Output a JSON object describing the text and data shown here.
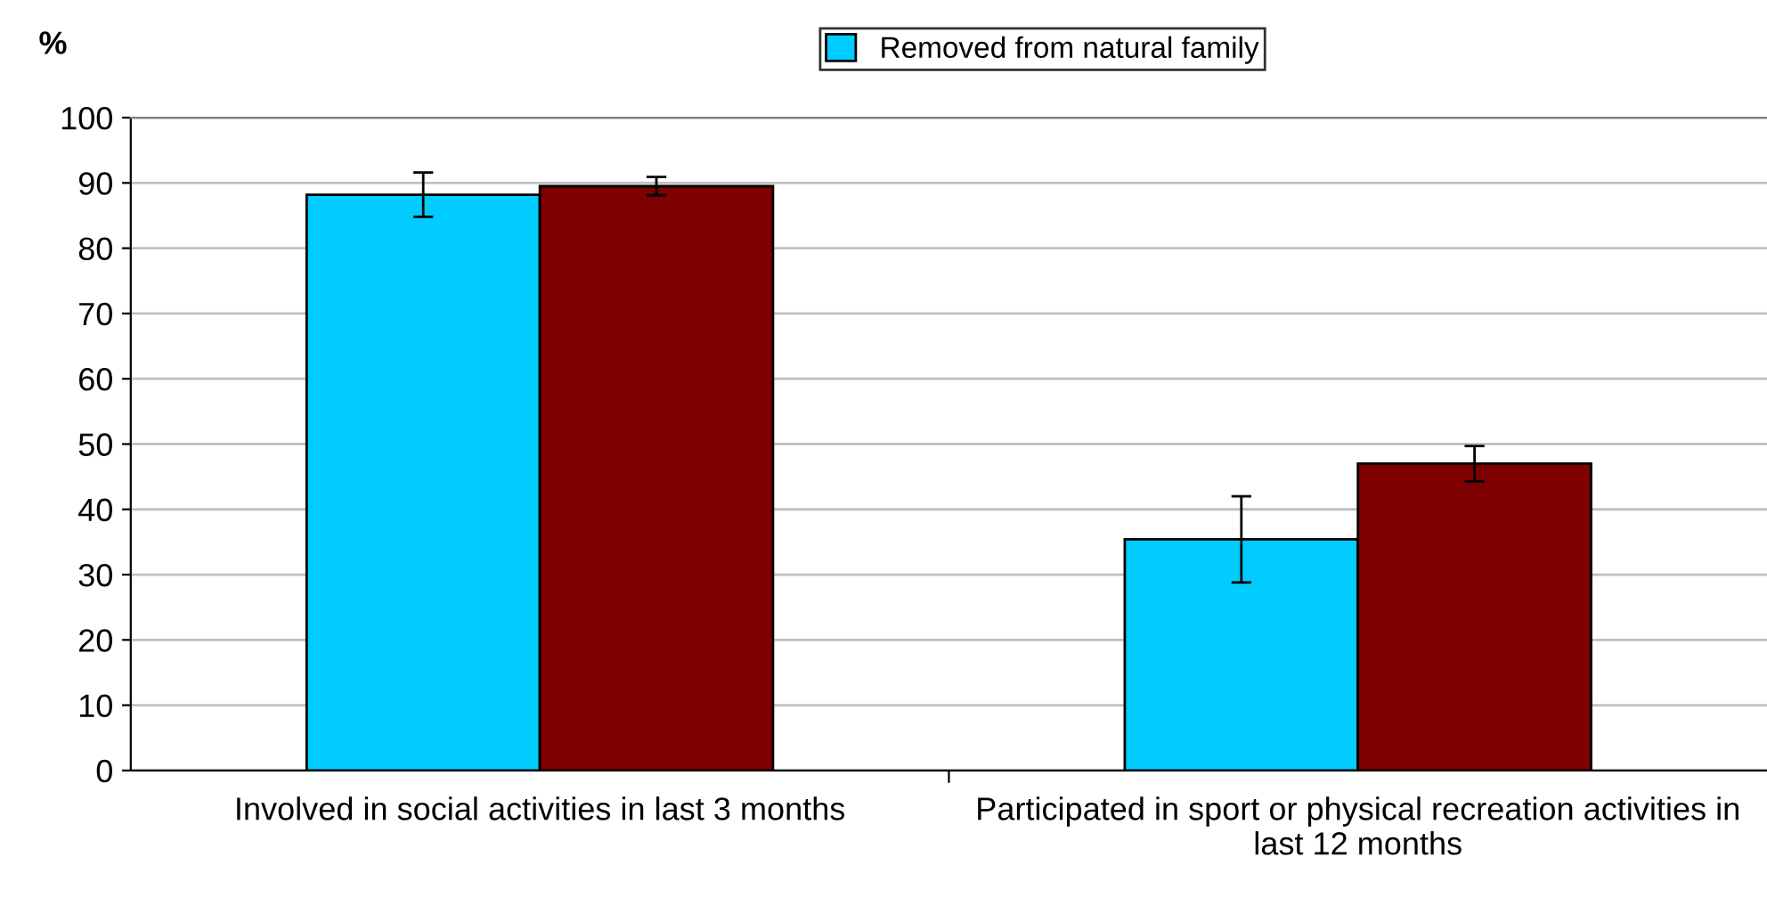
{
  "chart_data": {
    "type": "bar",
    "ylabel": "%",
    "categories": [
      "Involved in social activities in last 3 months",
      "Participated in sport or physical recreation activities in last 12 months"
    ],
    "series": [
      {
        "name": "Removed from natural family",
        "color": "#00ccff",
        "values": [
          88.2,
          35.4
        ],
        "errors": [
          3.4,
          6.6
        ]
      },
      {
        "color": "#7f0000",
        "values": [
          89.5,
          47.0
        ],
        "errors": [
          1.4,
          2.7
        ]
      }
    ],
    "ylim": [
      0,
      100
    ],
    "yticks": [
      0,
      10,
      20,
      30,
      40,
      50,
      60,
      70,
      80,
      90,
      100
    ],
    "grid": "y",
    "legend": "top"
  }
}
